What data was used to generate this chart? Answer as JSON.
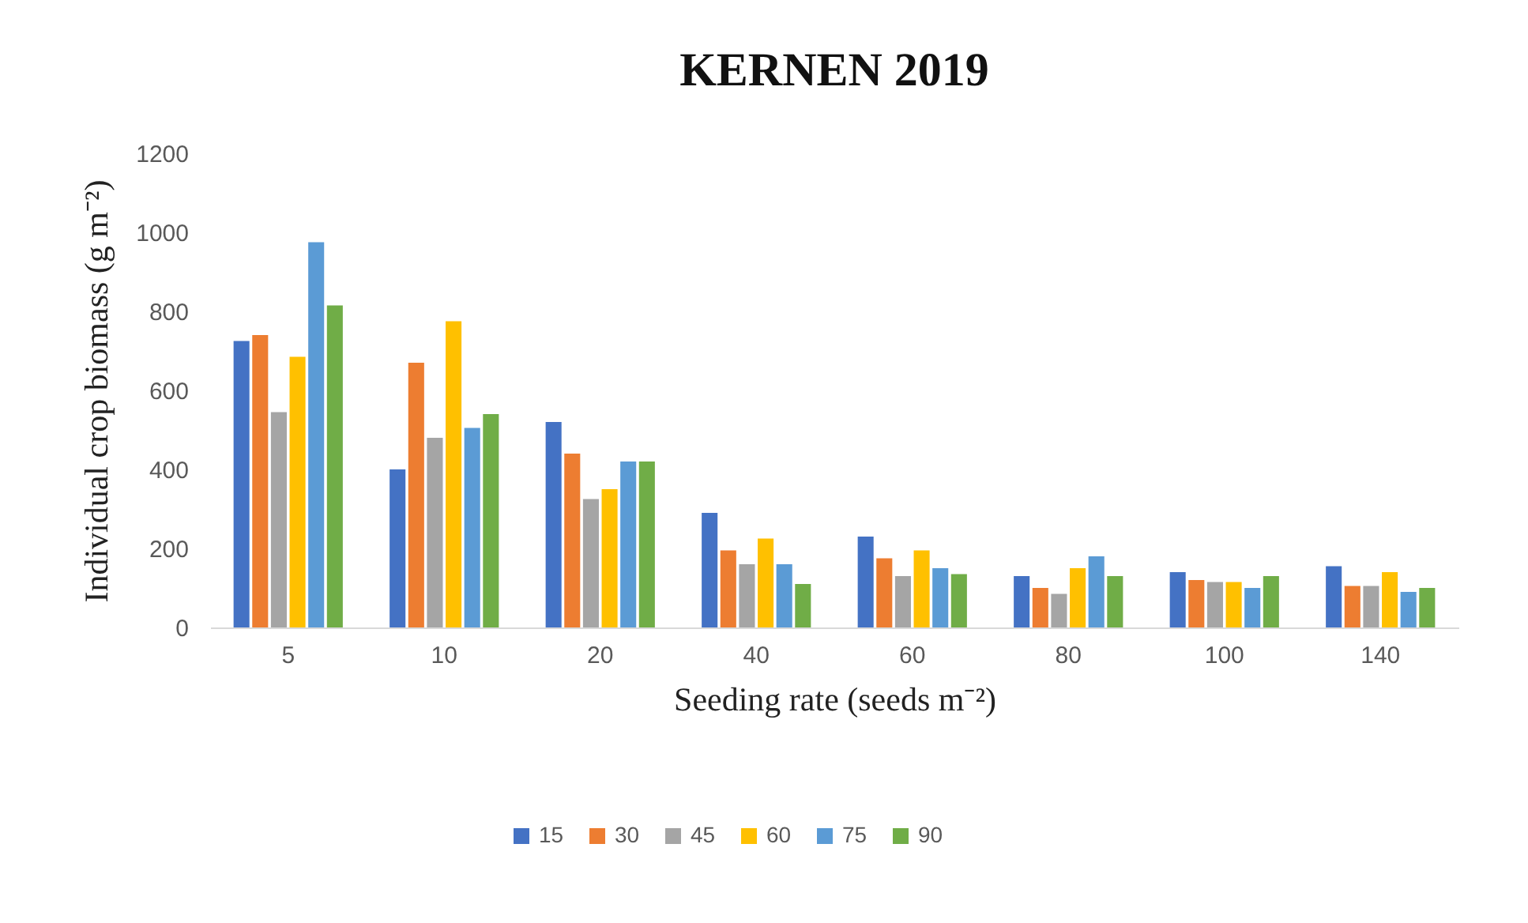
{
  "chart_data": {
    "type": "bar",
    "title": "KERNEN 2019",
    "xlabel": "Seeding rate (seeds m⁻²)",
    "ylabel": "Individual crop biomass (g m⁻²)",
    "categories": [
      "5",
      "10",
      "20",
      "40",
      "60",
      "80",
      "100",
      "140"
    ],
    "series": [
      {
        "name": "15",
        "color": "#4472c4",
        "values": [
          725,
          400,
          520,
          290,
          230,
          130,
          140,
          155
        ]
      },
      {
        "name": "30",
        "color": "#ed7d31",
        "values": [
          740,
          670,
          440,
          195,
          175,
          100,
          120,
          105
        ]
      },
      {
        "name": "45",
        "color": "#a5a5a5",
        "values": [
          545,
          480,
          325,
          160,
          130,
          85,
          115,
          105
        ]
      },
      {
        "name": "60",
        "color": "#ffc000",
        "values": [
          685,
          775,
          350,
          225,
          195,
          150,
          115,
          140
        ]
      },
      {
        "name": "75",
        "color": "#5b9bd5",
        "values": [
          975,
          505,
          420,
          160,
          150,
          180,
          100,
          90
        ]
      },
      {
        "name": "90",
        "color": "#70ad47",
        "values": [
          815,
          540,
          420,
          110,
          135,
          130,
          130,
          100
        ]
      }
    ],
    "ylim": [
      0,
      1200
    ],
    "yticks": [
      0,
      200,
      400,
      600,
      800,
      1000,
      1200
    ],
    "grid": false,
    "legend": "bottom"
  }
}
